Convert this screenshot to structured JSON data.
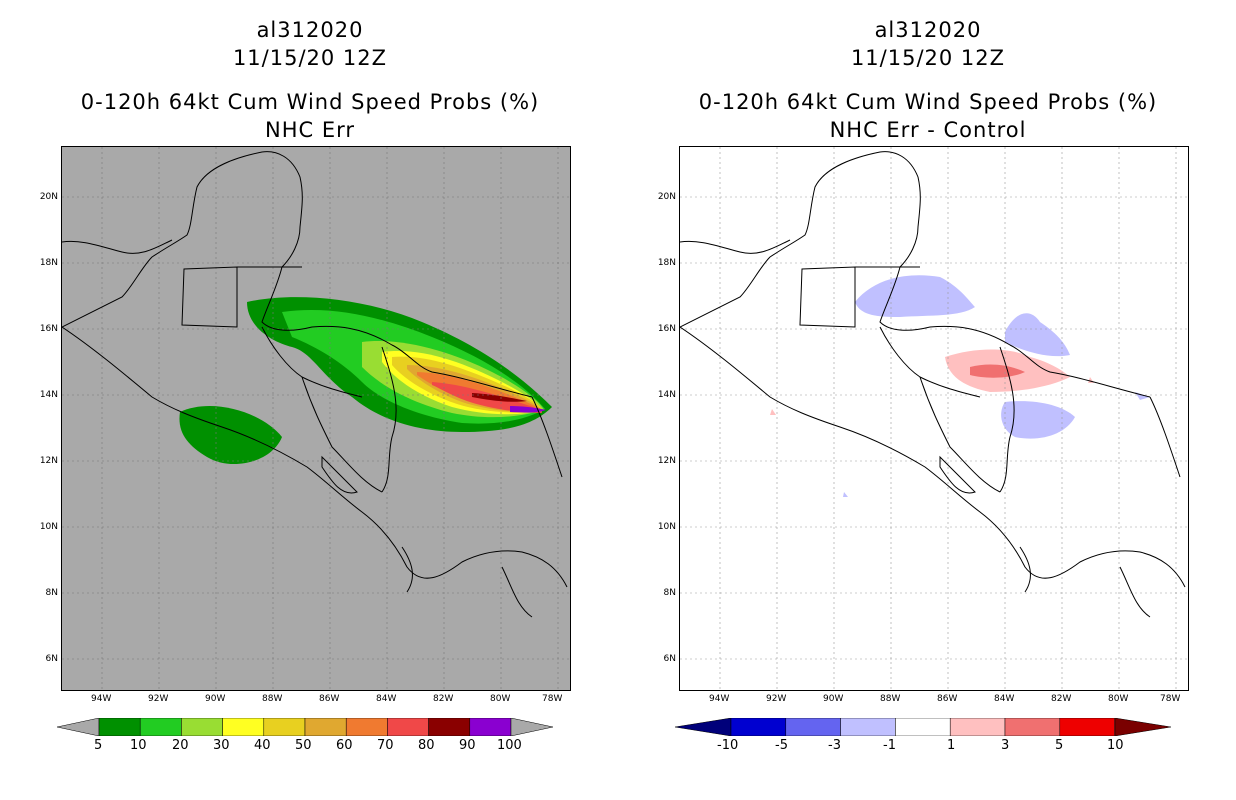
{
  "left_panel": {
    "storm_id": "al312020",
    "datetime": "11/15/20 12Z",
    "product": "0-120h 64kt Cum Wind Speed Probs (%)",
    "subtitle": "NHC Err",
    "lat_labels": [
      "20N",
      "18N",
      "16N",
      "14N",
      "12N",
      "10N",
      "8N",
      "6N"
    ],
    "lon_labels": [
      "94W",
      "92W",
      "90W",
      "88W",
      "86W",
      "84W",
      "82W",
      "80W",
      "78W"
    ],
    "colorbar_labels": [
      "5",
      "10",
      "20",
      "30",
      "40",
      "50",
      "60",
      "70",
      "80",
      "90",
      "100"
    ],
    "colorbar_colors": [
      "#009000",
      "#22cc22",
      "#99dd33",
      "#ffff22",
      "#e8d020",
      "#e0a830",
      "#f07a30",
      "#f04848",
      "#8a0000",
      "#8a00d0"
    ],
    "background": "#a9a9a9"
  },
  "right_panel": {
    "storm_id": "al312020",
    "datetime": "11/15/20 12Z",
    "product": "0-120h 64kt Cum Wind Speed Probs (%)",
    "subtitle": "NHC Err - Control",
    "lat_labels": [
      "20N",
      "18N",
      "16N",
      "14N",
      "12N",
      "10N",
      "8N",
      "6N"
    ],
    "lon_labels": [
      "94W",
      "92W",
      "90W",
      "88W",
      "86W",
      "84W",
      "82W",
      "80W",
      "78W"
    ],
    "colorbar_labels": [
      "-10",
      "-5",
      "-3",
      "-1",
      "1",
      "3",
      "5",
      "10"
    ],
    "colorbar_colors": [
      "#0000d0",
      "#6464f0",
      "#c0c0ff",
      "#ffffff",
      "#ffc0c0",
      "#f07070",
      "#ee0000"
    ],
    "background": "#ffffff"
  }
}
